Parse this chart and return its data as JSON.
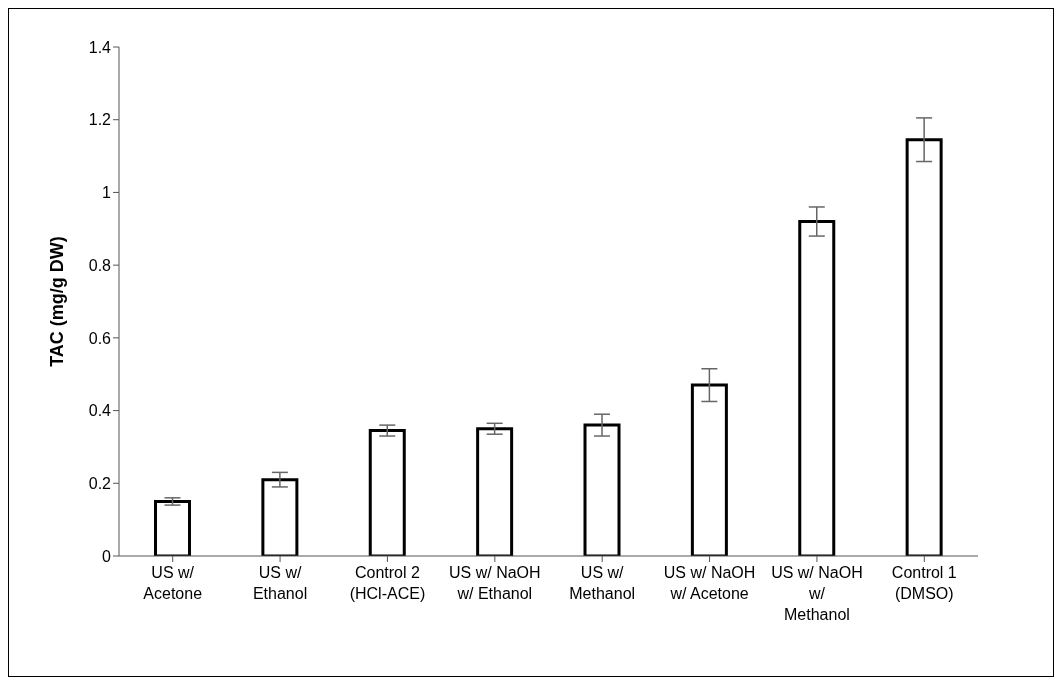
{
  "chart_data": {
    "type": "bar",
    "ylabel": "TAC (mg/g DW)",
    "categories": [
      "US w/ Acetone",
      "US w/ Ethanol",
      "Control 2 (HCl-ACE)",
      "US w/ NaOH w/ Ethanol",
      "US w/ Methanol",
      "US w/ NaOH w/ Acetone",
      "US w/ NaOH w/ Methanol",
      "Control 1 (DMSO)"
    ],
    "values": [
      0.15,
      0.21,
      0.345,
      0.35,
      0.36,
      0.47,
      0.92,
      1.145
    ],
    "errors": [
      0.01,
      0.02,
      0.015,
      0.015,
      0.03,
      0.045,
      0.04,
      0.06
    ],
    "color": "#ffffff",
    "ylim": [
      0,
      1.4
    ],
    "yticks": [
      0,
      0.2,
      0.4,
      0.6,
      0.8,
      1,
      1.2,
      1.4
    ],
    "grid": false,
    "legend": false
  }
}
